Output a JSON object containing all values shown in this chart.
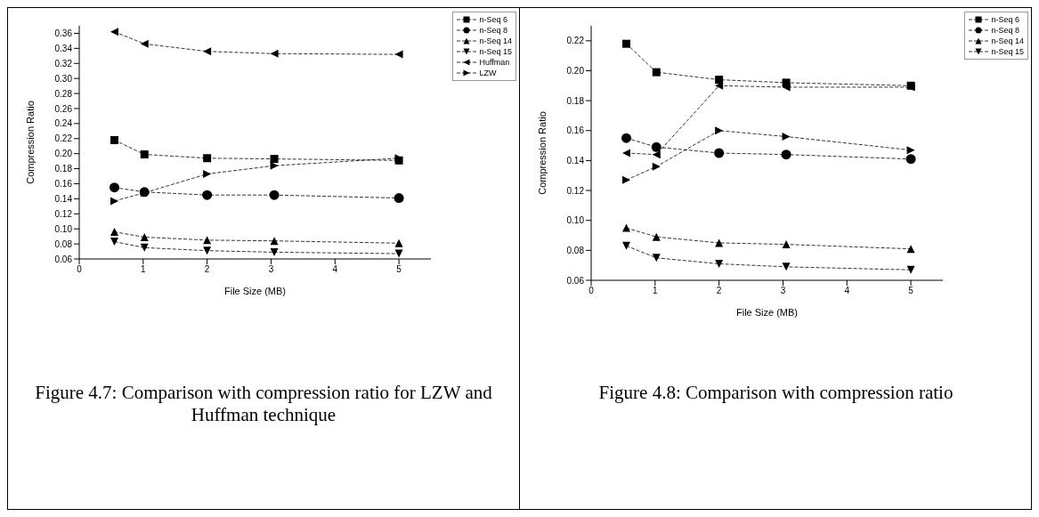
{
  "chart_data": [
    {
      "type": "line",
      "xlabel": "File Size (MB)",
      "ylabel": "Compression Ratio",
      "xlim": [
        0,
        5.5
      ],
      "xticks": [
        0,
        1,
        2,
        3,
        4,
        5
      ],
      "ylim": [
        0.06,
        0.37
      ],
      "yticks": [
        0.06,
        0.08,
        {
          "value": 0.1,
          "label": "0.10"
        },
        0.12,
        0.14,
        0.16,
        0.18,
        {
          "value": 0.2,
          "label": "0.20"
        },
        0.22,
        0.24,
        0.26,
        0.28,
        {
          "value": 0.3,
          "label": "0.30"
        },
        0.32,
        0.34,
        0.36
      ],
      "legend": "top right",
      "line_style": "dashed",
      "grid": false,
      "x": [
        0.55,
        1.02,
        2,
        3.05,
        5
      ],
      "series": [
        {
          "name": "n-Seq 6",
          "color": "#000000",
          "marker": "square",
          "values": [
            0.218,
            0.199,
            0.194,
            0.193,
            0.191
          ]
        },
        {
          "name": "n-Seq 8",
          "color": "#000000",
          "marker": "circle",
          "values": [
            0.155,
            0.149,
            0.145,
            0.145,
            0.141
          ]
        },
        {
          "name": "n-Seq 14",
          "color": "#000000",
          "marker": "triangle",
          "values": [
            0.096,
            0.089,
            0.085,
            0.084,
            0.081
          ]
        },
        {
          "name": "n-Seq 15",
          "color": "#000000",
          "marker": "triangle-down",
          "values": [
            0.083,
            0.075,
            0.071,
            0.069,
            0.067
          ]
        },
        {
          "name": "Huffman",
          "color": "#000000",
          "marker": "triangle-left",
          "values": [
            0.362,
            0.346,
            0.336,
            0.333,
            0.332
          ]
        },
        {
          "name": "LZW",
          "color": "#000000",
          "marker": "triangle-right",
          "values": [
            0.137,
            0.148,
            0.173,
            0.184,
            0.194
          ]
        }
      ],
      "annotations": [
        "Figure 4.7: Comparison with compression ratio for LZW and Huffman technique"
      ]
    },
    {
      "type": "line",
      "xlabel": "File Size (MB)",
      "ylabel": "Compression Ratio",
      "xlim": [
        0,
        5.5
      ],
      "xticks": [
        0,
        1,
        2,
        3,
        4,
        5
      ],
      "ylim": [
        0.06,
        0.23
      ],
      "yticks": [
        0.06,
        0.08,
        {
          "value": 0.1,
          "label": "0.10"
        },
        0.12,
        0.14,
        0.16,
        0.18,
        {
          "value": 0.2,
          "label": "0.20"
        },
        0.22
      ],
      "legend": "top right",
      "line_style": "dashed",
      "grid": false,
      "x": [
        0.55,
        1.02,
        2,
        3.05,
        5
      ],
      "series": [
        {
          "name": "n-Seq 6",
          "color": "#000000",
          "marker": "square",
          "values": [
            0.218,
            0.199,
            0.194,
            0.192,
            0.19
          ]
        },
        {
          "name": "n-Seq 8",
          "color": "#000000",
          "marker": "circle",
          "values": [
            0.155,
            0.149,
            0.145,
            0.144,
            0.141
          ]
        },
        {
          "name": "n-Seq 14",
          "color": "#000000",
          "marker": "triangle",
          "values": [
            0.095,
            0.089,
            0.085,
            0.084,
            0.081
          ]
        },
        {
          "name": "n-Seq 15",
          "color": "#000000",
          "marker": "triangle-down",
          "values": [
            0.083,
            0.075,
            0.071,
            0.069,
            0.067
          ]
        },
        {
          "color": "#000000",
          "marker": "triangle-left",
          "values": [
            0.145,
            0.144,
            0.19,
            0.189,
            0.189
          ]
        },
        {
          "color": "#000000",
          "marker": "triangle-right",
          "values": [
            0.127,
            0.136,
            0.16,
            0.156,
            0.147
          ]
        }
      ],
      "annotations": [
        "Figure 4.8: Comparison with compression ratio"
      ]
    }
  ]
}
